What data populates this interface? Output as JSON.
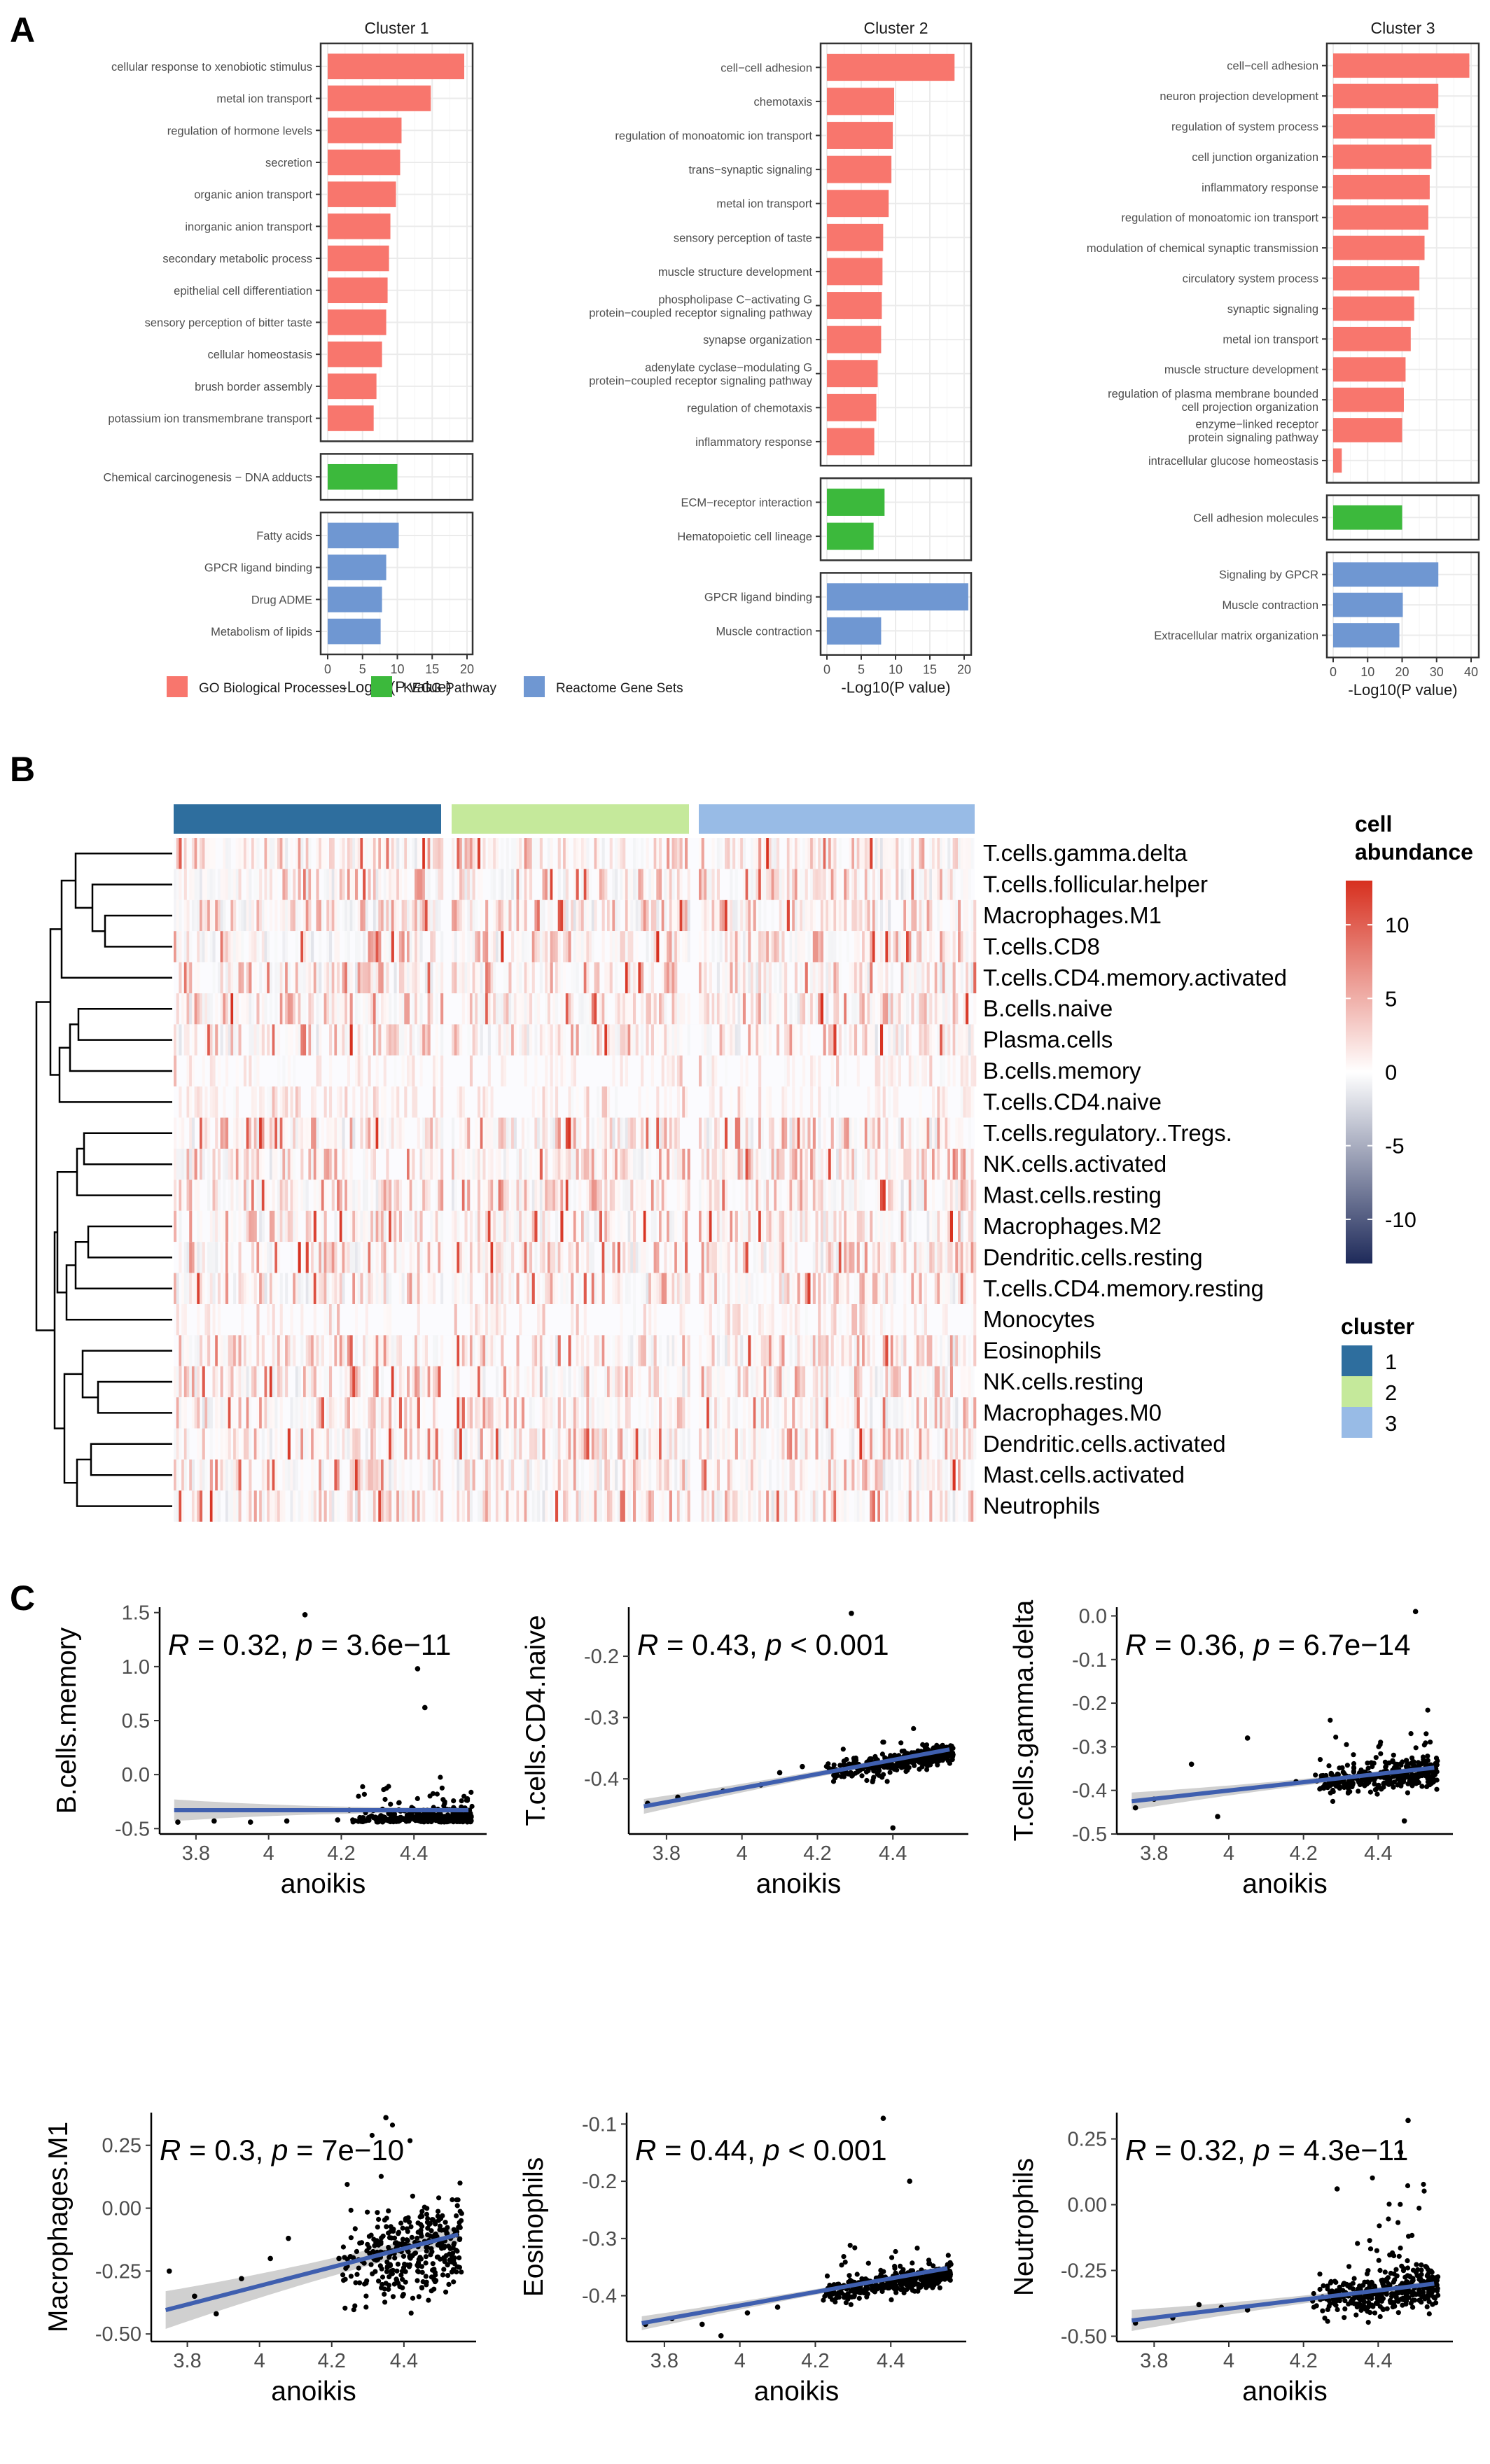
{
  "panel_labels": [
    "A",
    "B",
    "C"
  ],
  "colors": {
    "go": "#F8766D",
    "kegg": "#3CB93C",
    "reactome": "#6F97D2",
    "cluster1": "#2E6E9E",
    "cluster2": "#C5E99B",
    "cluster3": "#98BBE6",
    "fit_line": "#3F5FAF",
    "ci_band": "#C8C8C8",
    "heat_high": "#D7301F",
    "heat_low": "#1E2A5A"
  },
  "chart_data": [
    {
      "type": "bar",
      "panel": "A",
      "orientation": "horizontal",
      "title": "Cluster 1",
      "xlabel": "-Log10(P value)",
      "xlim": [
        0,
        20
      ],
      "xticks": [
        0,
        5,
        10,
        15,
        20
      ],
      "groups": [
        {
          "source": "go",
          "categories": [
            "cellular response to xenobiotic stimulus",
            "metal ion transport",
            "regulation of hormone levels",
            "secretion",
            "organic anion transport",
            "inorganic anion transport",
            "secondary metabolic process",
            "epithelial cell differentiation",
            "sensory perception of bitter taste",
            "cellular homeostasis",
            "brush border assembly",
            "potassium ion transmembrane transport"
          ],
          "values": [
            19.6,
            14.8,
            10.6,
            10.4,
            9.8,
            9.0,
            8.8,
            8.6,
            8.4,
            7.8,
            7.0,
            6.6
          ]
        },
        {
          "source": "kegg",
          "categories": [
            "Chemical carcinogenesis − DNA adducts"
          ],
          "values": [
            10.0
          ]
        },
        {
          "source": "reactome",
          "categories": [
            "Fatty acids",
            "GPCR ligand binding",
            "Drug ADME",
            "Metabolism of lipids"
          ],
          "values": [
            10.2,
            8.4,
            7.8,
            7.6
          ]
        }
      ]
    },
    {
      "type": "bar",
      "panel": "A",
      "orientation": "horizontal",
      "title": "Cluster 2",
      "xlabel": "-Log10(P value)",
      "xlim": [
        0,
        20
      ],
      "xticks": [
        0,
        5,
        10,
        15,
        20
      ],
      "groups": [
        {
          "source": "go",
          "categories": [
            "cell−cell adhesion",
            "chemotaxis",
            "regulation of monoatomic ion transport",
            "trans−synaptic signaling",
            "metal ion transport",
            "sensory perception of taste",
            "muscle structure development",
            "phospholipase C−activating G protein−coupled receptor signaling pathway",
            "synapse organization",
            "adenylate cyclase−modulating G protein−coupled receptor signaling pathway",
            "regulation of chemotaxis",
            "inflammatory response"
          ],
          "values": [
            18.6,
            9.8,
            9.6,
            9.4,
            9.0,
            8.2,
            8.1,
            8.0,
            7.9,
            7.4,
            7.2,
            6.9
          ]
        },
        {
          "source": "kegg",
          "categories": [
            "ECM−receptor interaction",
            "Hematopoietic cell lineage"
          ],
          "values": [
            8.4,
            6.8
          ]
        },
        {
          "source": "reactome",
          "categories": [
            "GPCR ligand binding",
            "Muscle contraction"
          ],
          "values": [
            20.6,
            7.9
          ]
        }
      ]
    },
    {
      "type": "bar",
      "panel": "A",
      "orientation": "horizontal",
      "title": "Cluster 3",
      "xlabel": "-Log10(P value)",
      "xlim": [
        0,
        40
      ],
      "xticks": [
        0,
        10,
        20,
        30,
        40
      ],
      "groups": [
        {
          "source": "go",
          "categories": [
            "cell−cell adhesion",
            "neuron projection development",
            "regulation of system process",
            "cell junction organization",
            "inflammatory response",
            "regulation of monoatomic ion transport",
            "modulation of chemical synaptic transmission",
            "circulatory system process",
            "synaptic signaling",
            "metal ion transport",
            "muscle structure development",
            "regulation of plasma membrane bounded cell projection organization",
            "enzyme−linked receptor protein signaling pathway",
            "intracellular glucose homeostasis"
          ],
          "values": [
            39.5,
            30.5,
            29.5,
            28.5,
            28.0,
            27.6,
            26.5,
            25.0,
            23.5,
            22.5,
            21.0,
            20.5,
            20.0,
            2.5
          ]
        },
        {
          "source": "kegg",
          "categories": [
            "Cell adhesion molecules"
          ],
          "values": [
            20.0
          ]
        },
        {
          "source": "reactome",
          "categories": [
            "Signaling by GPCR",
            "Muscle contraction",
            "Extracellular matrix organization"
          ],
          "values": [
            30.5,
            20.2,
            19.2
          ]
        }
      ]
    },
    {
      "type": "heatmap",
      "panel": "B",
      "rows": [
        "T.cells.gamma.delta",
        "T.cells.follicular.helper",
        "Macrophages.M1",
        "T.cells.CD8",
        "T.cells.CD4.memory.activated",
        "B.cells.naive",
        "Plasma.cells",
        "B.cells.memory",
        "T.cells.CD4.naive",
        "T.cells.regulatory..Tregs.",
        "NK.cells.activated",
        "Mast.cells.resting",
        "Macrophages.M2",
        "Dendritic.cells.resting",
        "T.cells.CD4.memory.resting",
        "Monocytes",
        "Eosinophils",
        "NK.cells.resting",
        "Macrophages.M0",
        "Dendritic.cells.activated",
        "Mast.cells.activated",
        "Neutrophils"
      ],
      "legend_title": [
        "cell",
        "abundance"
      ],
      "color_range": [
        -13,
        13
      ],
      "color_ticks": [
        10,
        5,
        0,
        -5,
        -10
      ],
      "cluster_legend_title": "cluster",
      "clusters": [
        "1",
        "2",
        "3"
      ],
      "cluster_sizes": [
        130,
        110,
        130
      ]
    },
    {
      "type": "scatter",
      "panel": "C",
      "xlabel": "anoikis",
      "ylabel": "B.cells.memory",
      "xlim": [
        3.7,
        4.6
      ],
      "ylim": [
        -0.55,
        1.55
      ],
      "xticks": [
        3.8,
        4.0,
        4.2,
        4.4
      ],
      "yticks": [
        "-0.5",
        "0.0",
        "0.5",
        "1.0",
        "1.5"
      ],
      "annotation": {
        "r_label": "R",
        "r_text": " = 0.32, ",
        "p_label": "p",
        "p_text": " = 3.6e−11"
      },
      "fit": {
        "y_start": -0.33,
        "y_end": -0.33,
        "ci": [
          0.1,
          0.025
        ]
      },
      "model": {
        "base": -0.43,
        "slope": 0.02,
        "noise": 0.06,
        "spread_mult": 1.5,
        "outlier_p": 0.15
      },
      "points_visible": [
        [
          3.75,
          -0.44
        ],
        [
          3.85,
          -0.43
        ],
        [
          3.95,
          -0.44
        ],
        [
          4.05,
          -0.43
        ],
        [
          4.1,
          1.48
        ],
        [
          4.19,
          -0.42
        ],
        [
          4.41,
          0.98
        ],
        [
          4.43,
          0.62
        ]
      ]
    },
    {
      "type": "scatter",
      "panel": "C",
      "xlabel": "anoikis",
      "ylabel": "T.cells.CD4.naive",
      "xlim": [
        3.7,
        4.6
      ],
      "ylim": [
        -0.49,
        -0.12
      ],
      "xticks": [
        3.8,
        4.0,
        4.2,
        4.4
      ],
      "yticks": [
        "-0.4",
        "-0.3",
        "-0.2"
      ],
      "annotation": {
        "r_label": "R",
        "r_text": " = 0.43, ",
        "p_label": "p",
        "p_text": " < 0.001"
      },
      "fit": {
        "y_start": -0.445,
        "y_end": -0.352,
        "ci": [
          0.012,
          0.004
        ]
      },
      "model": {
        "base": -0.445,
        "slope": 0.108,
        "noise": 0.012,
        "spread_mult": 1.0,
        "outlier_p": 0.03
      },
      "points_visible": [
        [
          3.75,
          -0.44
        ],
        [
          3.83,
          -0.43
        ],
        [
          3.95,
          -0.42
        ],
        [
          4.05,
          -0.41
        ],
        [
          4.1,
          -0.39
        ],
        [
          4.29,
          -0.13
        ],
        [
          4.16,
          -0.38
        ],
        [
          4.4,
          -0.48
        ]
      ]
    },
    {
      "type": "scatter",
      "panel": "C",
      "xlabel": "anoikis",
      "ylabel": "T.cells.gamma.delta",
      "xlim": [
        3.7,
        4.6
      ],
      "ylim": [
        -0.5,
        0.02
      ],
      "xticks": [
        3.8,
        4.0,
        4.2,
        4.4
      ],
      "yticks": [
        "-0.5",
        "-0.4",
        "-0.3",
        "-0.2",
        "-0.1",
        "0.0"
      ],
      "annotation": {
        "r_label": "R",
        "r_text": " = 0.36, ",
        "p_label": "p",
        "p_text": " = 6.7e−14"
      },
      "fit": {
        "y_start": -0.425,
        "y_end": -0.348,
        "ci": [
          0.02,
          0.006
        ]
      },
      "model": {
        "base": -0.43,
        "slope": 0.09,
        "noise": 0.022,
        "spread_mult": 1.6,
        "outlier_p": 0.08
      },
      "points_visible": [
        [
          3.75,
          -0.44
        ],
        [
          3.8,
          -0.42
        ],
        [
          3.9,
          -0.34
        ],
        [
          3.97,
          -0.46
        ],
        [
          4.05,
          -0.28
        ],
        [
          4.18,
          -0.38
        ],
        [
          4.5,
          0.01
        ],
        [
          4.47,
          -0.47
        ]
      ]
    },
    {
      "type": "scatter",
      "panel": "C",
      "xlabel": "anoikis",
      "ylabel": "Macrophages.M1",
      "xlim": [
        3.7,
        4.6
      ],
      "ylim": [
        -0.53,
        0.38
      ],
      "xticks": [
        3.8,
        4.0,
        4.2,
        4.4
      ],
      "yticks": [
        "-0.50",
        "-0.25",
        "0.00",
        "0.25"
      ],
      "annotation": {
        "r_label": "R",
        "r_text": " = 0.3, ",
        "p_label": "p",
        "p_text": " = 7e−10"
      },
      "fit": {
        "y_start": -0.405,
        "y_end": -0.105,
        "ci": [
          0.075,
          0.03
        ]
      },
      "model": {
        "base": -0.42,
        "slope": 0.36,
        "noise": 0.12,
        "spread_mult": 1.2,
        "outlier_p": 0.05
      },
      "points_visible": [
        [
          3.75,
          -0.25
        ],
        [
          3.82,
          -0.35
        ],
        [
          3.88,
          -0.42
        ],
        [
          3.95,
          -0.28
        ],
        [
          4.03,
          -0.2
        ],
        [
          4.08,
          -0.12
        ],
        [
          4.35,
          0.36
        ],
        [
          4.22,
          -0.2
        ]
      ]
    },
    {
      "type": "scatter",
      "panel": "C",
      "xlabel": "anoikis",
      "ylabel": "Eosinophils",
      "xlim": [
        3.7,
        4.6
      ],
      "ylim": [
        -0.48,
        -0.08
      ],
      "xticks": [
        3.8,
        4.0,
        4.2,
        4.4
      ],
      "yticks": [
        "-0.4",
        "-0.3",
        "-0.2",
        "-0.1"
      ],
      "annotation": {
        "r_label": "R",
        "r_text": " = 0.44, ",
        "p_label": "p",
        "p_text": " < 0.001"
      },
      "fit": {
        "y_start": -0.448,
        "y_end": -0.352,
        "ci": [
          0.012,
          0.004
        ]
      },
      "model": {
        "base": -0.45,
        "slope": 0.11,
        "noise": 0.014,
        "spread_mult": 1.3,
        "outlier_p": 0.04
      },
      "points_visible": [
        [
          3.75,
          -0.45
        ],
        [
          3.82,
          -0.44
        ],
        [
          3.9,
          -0.45
        ],
        [
          3.95,
          -0.47
        ],
        [
          4.02,
          -0.43
        ],
        [
          4.1,
          -0.42
        ],
        [
          4.38,
          -0.09
        ],
        [
          4.45,
          -0.2
        ]
      ]
    },
    {
      "type": "scatter",
      "panel": "C",
      "xlabel": "anoikis",
      "ylabel": "Neutrophils",
      "xlim": [
        3.7,
        4.6
      ],
      "ylim": [
        -0.52,
        0.35
      ],
      "xticks": [
        3.8,
        4.0,
        4.2,
        4.4
      ],
      "yticks": [
        "-0.50",
        "-0.25",
        "0.00",
        "0.25"
      ],
      "annotation": {
        "r_label": "R",
        "r_text": " = 0.32, ",
        "p_label": "p",
        "p_text": " = 4.3e−11"
      },
      "fit": {
        "y_start": -0.44,
        "y_end": -0.3,
        "ci": [
          0.04,
          0.012
        ]
      },
      "model": {
        "base": -0.45,
        "slope": 0.17,
        "noise": 0.05,
        "spread_mult": 2.0,
        "outlier_p": 0.1
      },
      "points_visible": [
        [
          3.75,
          -0.45
        ],
        [
          3.85,
          -0.43
        ],
        [
          3.92,
          -0.38
        ],
        [
          3.98,
          -0.39
        ],
        [
          4.05,
          -0.4
        ],
        [
          4.29,
          0.06
        ],
        [
          4.48,
          0.32
        ],
        [
          4.46,
          0.2
        ]
      ]
    }
  ],
  "legend_A": [
    {
      "source": "go",
      "label": "GO Biological Processes"
    },
    {
      "source": "kegg",
      "label": "KEGG Pathway"
    },
    {
      "source": "reactome",
      "label": "Reactome Gene Sets"
    }
  ]
}
